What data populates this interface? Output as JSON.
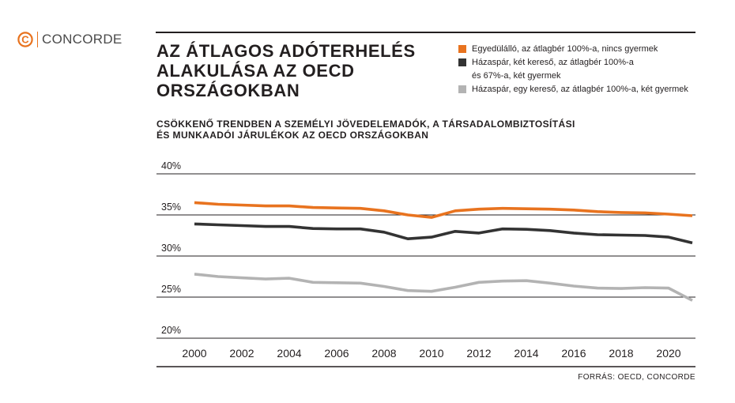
{
  "brand": {
    "name": "CONCORDE",
    "mark_letter": "C",
    "accent": "#e8731f"
  },
  "title_lines": [
    "AZ ÁTLAGOS ADÓTERHELÉS",
    "ALAKULÁSA AZ OECD",
    "ORSZÁGOKBAN"
  ],
  "subtitle_lines": [
    "CSÖKKENŐ TRENDBEN A SZEMÉLYI JÖVEDELEMADÓK, A TÁRSADALOMBIZTOSÍTÁSI",
    "ÉS MUNKAADÓI JÁRULÉKOK AZ OECD ORSZÁGOKBAN"
  ],
  "legend": [
    {
      "lines": [
        "Egyedülálló, az átlagbér 100%-a, nincs gyermek"
      ],
      "color": "#e8731f"
    },
    {
      "lines": [
        "Házaspár, két kereső, az átlagbér 100%-a",
        "és 67%-a, két gyermek"
      ],
      "color": "#333333"
    },
    {
      "lines": [
        "Házaspár, egy kereső, az átlagbér 100%-a, két gyermek"
      ],
      "color": "#b3b3b3"
    }
  ],
  "source": "FORRÁS: OECD, CONCORDE",
  "chart_data": {
    "type": "line",
    "title": "AZ ÁTLAGOS ADÓTERHELÉS ALAKULÁSA AZ OECD ORSZÁGOKBAN",
    "xlabel": "",
    "ylabel": "",
    "ylim": [
      20,
      40
    ],
    "xlim": [
      2000,
      2021
    ],
    "y_ticks": [
      40,
      35,
      30,
      25,
      20
    ],
    "y_tick_labels": [
      "40%",
      "35%",
      "30%",
      "25%",
      "20%"
    ],
    "x_ticks": [
      2000,
      2002,
      2004,
      2006,
      2008,
      2010,
      2012,
      2014,
      2016,
      2018,
      2020
    ],
    "x_tick_labels": [
      "2000",
      "2002",
      "2004",
      "2006",
      "2008",
      "2010",
      "2012",
      "2014",
      "2016",
      "2018",
      "2020"
    ],
    "grid": "horizontal",
    "x": [
      2000,
      2001,
      2002,
      2003,
      2004,
      2005,
      2006,
      2007,
      2008,
      2009,
      2010,
      2011,
      2012,
      2013,
      2014,
      2015,
      2016,
      2017,
      2018,
      2019,
      2020,
      2021
    ],
    "series": [
      {
        "name": "Egyedülálló, az átlagbér 100%-a, nincs gyermek",
        "color": "#e8731f",
        "values": [
          36.5,
          36.3,
          36.2,
          36.1,
          36.1,
          35.9,
          35.85,
          35.8,
          35.5,
          35.0,
          34.7,
          35.5,
          35.7,
          35.8,
          35.75,
          35.7,
          35.6,
          35.4,
          35.3,
          35.25,
          35.1,
          34.9
        ]
      },
      {
        "name": "Házaspár, két kereső, az átlagbér 100%-a és 67%-a, két gyermek",
        "color": "#333333",
        "values": [
          33.9,
          33.8,
          33.7,
          33.6,
          33.6,
          33.35,
          33.3,
          33.3,
          32.9,
          32.1,
          32.3,
          33.0,
          32.8,
          33.3,
          33.25,
          33.1,
          32.8,
          32.6,
          32.55,
          32.5,
          32.3,
          31.6
        ]
      },
      {
        "name": "Házaspár, egy kereső, az átlagbér 100%-a, két gyermek",
        "color": "#b3b3b3",
        "values": [
          27.8,
          27.5,
          27.35,
          27.2,
          27.3,
          26.8,
          26.75,
          26.7,
          26.3,
          25.8,
          25.7,
          26.2,
          26.8,
          26.95,
          27.0,
          26.7,
          26.35,
          26.1,
          26.05,
          26.15,
          26.1,
          24.6
        ]
      }
    ]
  }
}
